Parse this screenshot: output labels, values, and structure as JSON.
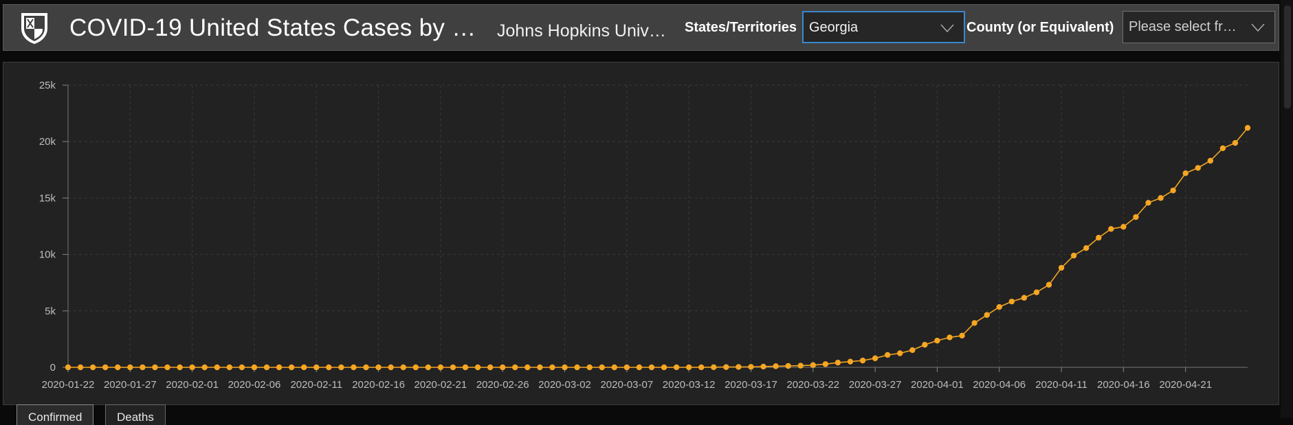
{
  "header": {
    "title": "COVID-19 United States Cases by …",
    "subtitle": "Johns Hopkins Univ…",
    "states_label": "States/Territories",
    "states_value": "Georgia",
    "county_label": "County (or Equivalent)",
    "county_placeholder": "Please select fr…"
  },
  "icons": {
    "logo": "shield-icon",
    "dropdown": "chevron-down-icon"
  },
  "tabs": [
    {
      "label": "Confirmed",
      "active": true
    },
    {
      "label": "Deaths",
      "active": false
    }
  ],
  "colors": {
    "accent": "#f5a623",
    "panel_bg": "#222222",
    "header_bg": "#404040",
    "grid": "#3a3a3a",
    "axis_text": "#bdbdbd"
  },
  "chart_data": {
    "type": "line",
    "title": "",
    "xlabel": "",
    "ylabel": "",
    "start_date": "2020-01-22",
    "x_ticks": [
      "2020-01-22",
      "2020-01-27",
      "2020-02-01",
      "2020-02-06",
      "2020-02-11",
      "2020-02-16",
      "2020-02-21",
      "2020-02-26",
      "2020-03-02",
      "2020-03-07",
      "2020-03-12",
      "2020-03-17",
      "2020-03-22",
      "2020-03-27",
      "2020-04-01",
      "2020-04-06",
      "2020-04-11",
      "2020-04-16",
      "2020-04-21"
    ],
    "y_ticks": [
      {
        "value": 0,
        "label": "0"
      },
      {
        "value": 5000,
        "label": "5k"
      },
      {
        "value": 10000,
        "label": "10k"
      },
      {
        "value": 15000,
        "label": "15k"
      },
      {
        "value": 20000,
        "label": "20k"
      },
      {
        "value": 25000,
        "label": "25k"
      }
    ],
    "ylim": [
      0,
      25000
    ],
    "grid": true,
    "series": [
      {
        "color": "#f5a623",
        "values": [
          0,
          0,
          0,
          0,
          0,
          0,
          0,
          0,
          0,
          0,
          0,
          0,
          0,
          0,
          0,
          0,
          0,
          0,
          0,
          0,
          0,
          0,
          0,
          0,
          0,
          0,
          0,
          0,
          0,
          0,
          0,
          0,
          0,
          0,
          0,
          0,
          0,
          0,
          0,
          0,
          0,
          0,
          0,
          0,
          0,
          0,
          0,
          0,
          0,
          2,
          3,
          5,
          11,
          22,
          33,
          42,
          66,
          99,
          121,
          146,
          197,
          287,
          420,
          507,
          600,
          800,
          1097,
          1247,
          1525,
          2000,
          2366,
          2651,
          2809,
          3929,
          4638,
          5348,
          5831,
          6160,
          6647,
          7314,
          8818,
          9901,
          10566,
          11483,
          12261,
          12452,
          13315,
          14578,
          15003,
          15669,
          17194,
          17669,
          18301,
          19407,
          19881,
          21214
        ]
      }
    ]
  }
}
